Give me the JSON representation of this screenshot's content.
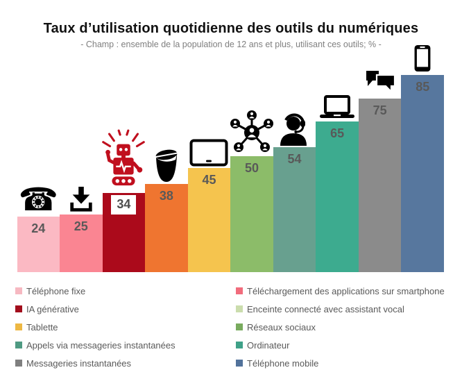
{
  "header": {
    "title": "Taux d’utilisation quotidienne des outils du numériques",
    "subtitle": "- Champ : ensemble de la population de 12 ans et plus, utilisant ces outils; % -"
  },
  "chart_data": {
    "type": "bar",
    "title": "Taux d’utilisation quotidienne des outils du numériques",
    "subtitle": "- Champ : ensemble de la population de 12 ans et plus, utilisant ces outils; % -",
    "unit": "%",
    "ylim": [
      0,
      100
    ],
    "grid": false,
    "axes_shown": false,
    "value_labels_shown": true,
    "categories": [
      "Téléphone fixe",
      "Téléchargement des applications sur smartphone",
      "IA générative",
      "Enceinte connecté avec assistant vocal",
      "Tablette",
      "Réseaux sociaux",
      "Appels via messageries instantanées",
      "Ordinateur",
      "Messageries instantanées",
      "Téléphone mobile"
    ],
    "values": [
      24,
      25,
      34,
      38,
      45,
      50,
      54,
      65,
      75,
      85
    ],
    "bar_colors": [
      "#FBB9C3",
      "#FA8592",
      "#AB0A1B",
      "#EF7530",
      "#F5C44E",
      "#8CBC69",
      "#68A08F",
      "#3DAB8F",
      "#8B8B8B",
      "#57779E"
    ],
    "icons": [
      "landline-phone-icon",
      "download-icon",
      "robot-icon",
      "smart-speaker-icon",
      "tablet-icon",
      "social-network-icon",
      "headset-agent-icon",
      "laptop-icon",
      "chat-bubbles-icon",
      "smartphone-icon"
    ],
    "boxed_label": [
      false,
      false,
      true,
      false,
      false,
      false,
      false,
      false,
      false,
      false
    ]
  },
  "legend": {
    "position": "bottom-two-columns",
    "columns": [
      {
        "items": [
          {
            "label": "Téléphone fixe",
            "color": "#F6B8C1"
          },
          {
            "label": "IA générative",
            "color": "#A20D1C"
          },
          {
            "label": "Tablette",
            "color": "#EEB843"
          },
          {
            "label": "Appels via messageries instantanées",
            "color": "#4F9A82"
          },
          {
            "label": "Messageries instantanées",
            "color": "#7F7F7F"
          }
        ]
      },
      {
        "items": [
          {
            "label": "Téléchargement des applications sur smartphone",
            "color": "#F16C7C"
          },
          {
            "label": "Enceinte connecté avec assistant vocal",
            "color": "#CBDDAD"
          },
          {
            "label": "Réseaux sociaux",
            "color": "#79AB5E"
          },
          {
            "label": "Ordinateur",
            "color": "#3FA188"
          },
          {
            "label": "Téléphone mobile",
            "color": "#52729B"
          }
        ]
      }
    ]
  },
  "colors": {
    "value_label_text": "#595959",
    "legend_text": "#595959",
    "subtitle_text": "#7F7F7F",
    "title_text": "#111111",
    "robot_red": "#C00F1E",
    "icon_black": "#000000",
    "background": "#FFFFFF"
  }
}
